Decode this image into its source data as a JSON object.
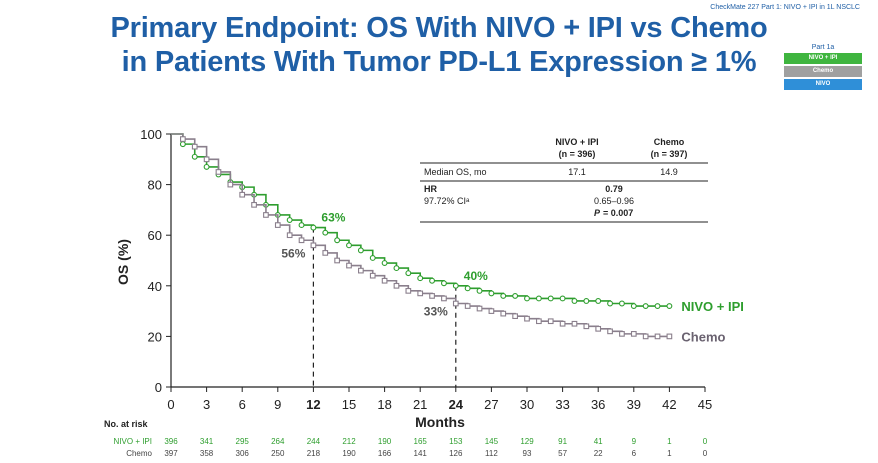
{
  "header": {
    "title_line1": "Primary Endpoint: OS With NIVO + IPI vs Chemo",
    "title_line2": "in Patients With Tumor PD-L1 Expression ≥ 1%",
    "study_note": "CheckMate 227 Part 1: NIVO + IPI in 1L NSCLC"
  },
  "part_legend": {
    "label": "Part 1a",
    "items": [
      {
        "text": "NIVO + IPI",
        "color": "#3fb53f"
      },
      {
        "text": "Chemo",
        "color": "#a0a0a0"
      },
      {
        "text": "NIVO",
        "color": "#2f8fd8"
      }
    ]
  },
  "stats_table": {
    "col1_header_a": "NIVO + IPI",
    "col1_header_b": "(n = 396)",
    "col2_header_a": "Chemo",
    "col2_header_b": "(n = 397)",
    "median_label": "Median OS, mo",
    "median_nivo": "17.1",
    "median_chemo": "14.9",
    "hr_label": "HR",
    "hr_value": "0.79",
    "ci_label": "97.72% CIᵃ",
    "ci_value": "0.65–0.96",
    "p_label": "P",
    "p_value": "= 0.007"
  },
  "colors": {
    "nivo_ipi": "#2e9e2e",
    "chemo": "#8a7f8c",
    "axis": "#222222",
    "title": "#1f5fa6"
  },
  "chart_data": {
    "type": "line",
    "xlabel": "Months",
    "ylabel": "OS (%)",
    "xlim": [
      0,
      45
    ],
    "ylim": [
      0,
      100
    ],
    "xticks": [
      0,
      3,
      6,
      9,
      12,
      15,
      18,
      21,
      24,
      27,
      30,
      33,
      36,
      39,
      42,
      45
    ],
    "yticks": [
      0,
      20,
      40,
      60,
      80,
      100
    ],
    "bold_xticks": [
      12,
      24
    ],
    "series": [
      {
        "name": "NIVO + IPI",
        "color": "#2e9e2e",
        "x": [
          0,
          1,
          2,
          3,
          4,
          5,
          6,
          7,
          8,
          9,
          10,
          11,
          12,
          13,
          14,
          15,
          16,
          17,
          18,
          19,
          20,
          21,
          22,
          23,
          24,
          25,
          26,
          27,
          28,
          29,
          30,
          31,
          32,
          33,
          34,
          35,
          36,
          37,
          38,
          39,
          40,
          41,
          42
        ],
        "y": [
          100,
          96,
          91,
          87,
          84,
          81,
          79,
          76,
          72,
          68,
          66,
          64,
          63,
          61,
          58,
          56,
          54,
          51,
          49,
          47,
          45,
          43,
          42,
          41,
          40,
          39,
          38,
          37,
          36,
          36,
          35,
          35,
          35,
          35,
          34,
          34,
          34,
          33,
          33,
          32,
          32,
          32,
          32
        ]
      },
      {
        "name": "Chemo",
        "color": "#8a7f8c",
        "x": [
          0,
          1,
          2,
          3,
          4,
          5,
          6,
          7,
          8,
          9,
          10,
          11,
          12,
          13,
          14,
          15,
          16,
          17,
          18,
          19,
          20,
          21,
          22,
          23,
          24,
          25,
          26,
          27,
          28,
          29,
          30,
          31,
          32,
          33,
          34,
          35,
          36,
          37,
          38,
          39,
          40,
          41,
          42
        ],
        "y": [
          100,
          98,
          95,
          90,
          85,
          80,
          76,
          72,
          68,
          64,
          60,
          58,
          56,
          53,
          50,
          48,
          46,
          44,
          42,
          40,
          38,
          37,
          36,
          35,
          33,
          32,
          31,
          30,
          29,
          28,
          27,
          26,
          26,
          25,
          25,
          24,
          23,
          22,
          21,
          21,
          20,
          20,
          20
        ]
      }
    ],
    "annotations": [
      {
        "text": "63%",
        "x": 12,
        "y": 63,
        "series": "NIVO + IPI"
      },
      {
        "text": "56%",
        "x": 12,
        "y": 56,
        "series": "Chemo"
      },
      {
        "text": "40%",
        "x": 24,
        "y": 40,
        "series": "NIVO + IPI"
      },
      {
        "text": "33%",
        "x": 24,
        "y": 33,
        "series": "Chemo"
      }
    ],
    "series_end_labels": [
      "NIVO + IPI",
      "Chemo"
    ]
  },
  "at_risk": {
    "header": "No. at risk",
    "rows": [
      {
        "label": "NIVO + IPI",
        "color": "#2e9e2e",
        "values": [
          "396",
          "341",
          "295",
          "264",
          "244",
          "212",
          "190",
          "165",
          "153",
          "145",
          "129",
          "91",
          "41",
          "9",
          "1",
          "0"
        ]
      },
      {
        "label": "Chemo",
        "color": "#444444",
        "values": [
          "397",
          "358",
          "306",
          "250",
          "218",
          "190",
          "166",
          "141",
          "126",
          "112",
          "93",
          "57",
          "22",
          "6",
          "1",
          "0"
        ]
      }
    ]
  }
}
